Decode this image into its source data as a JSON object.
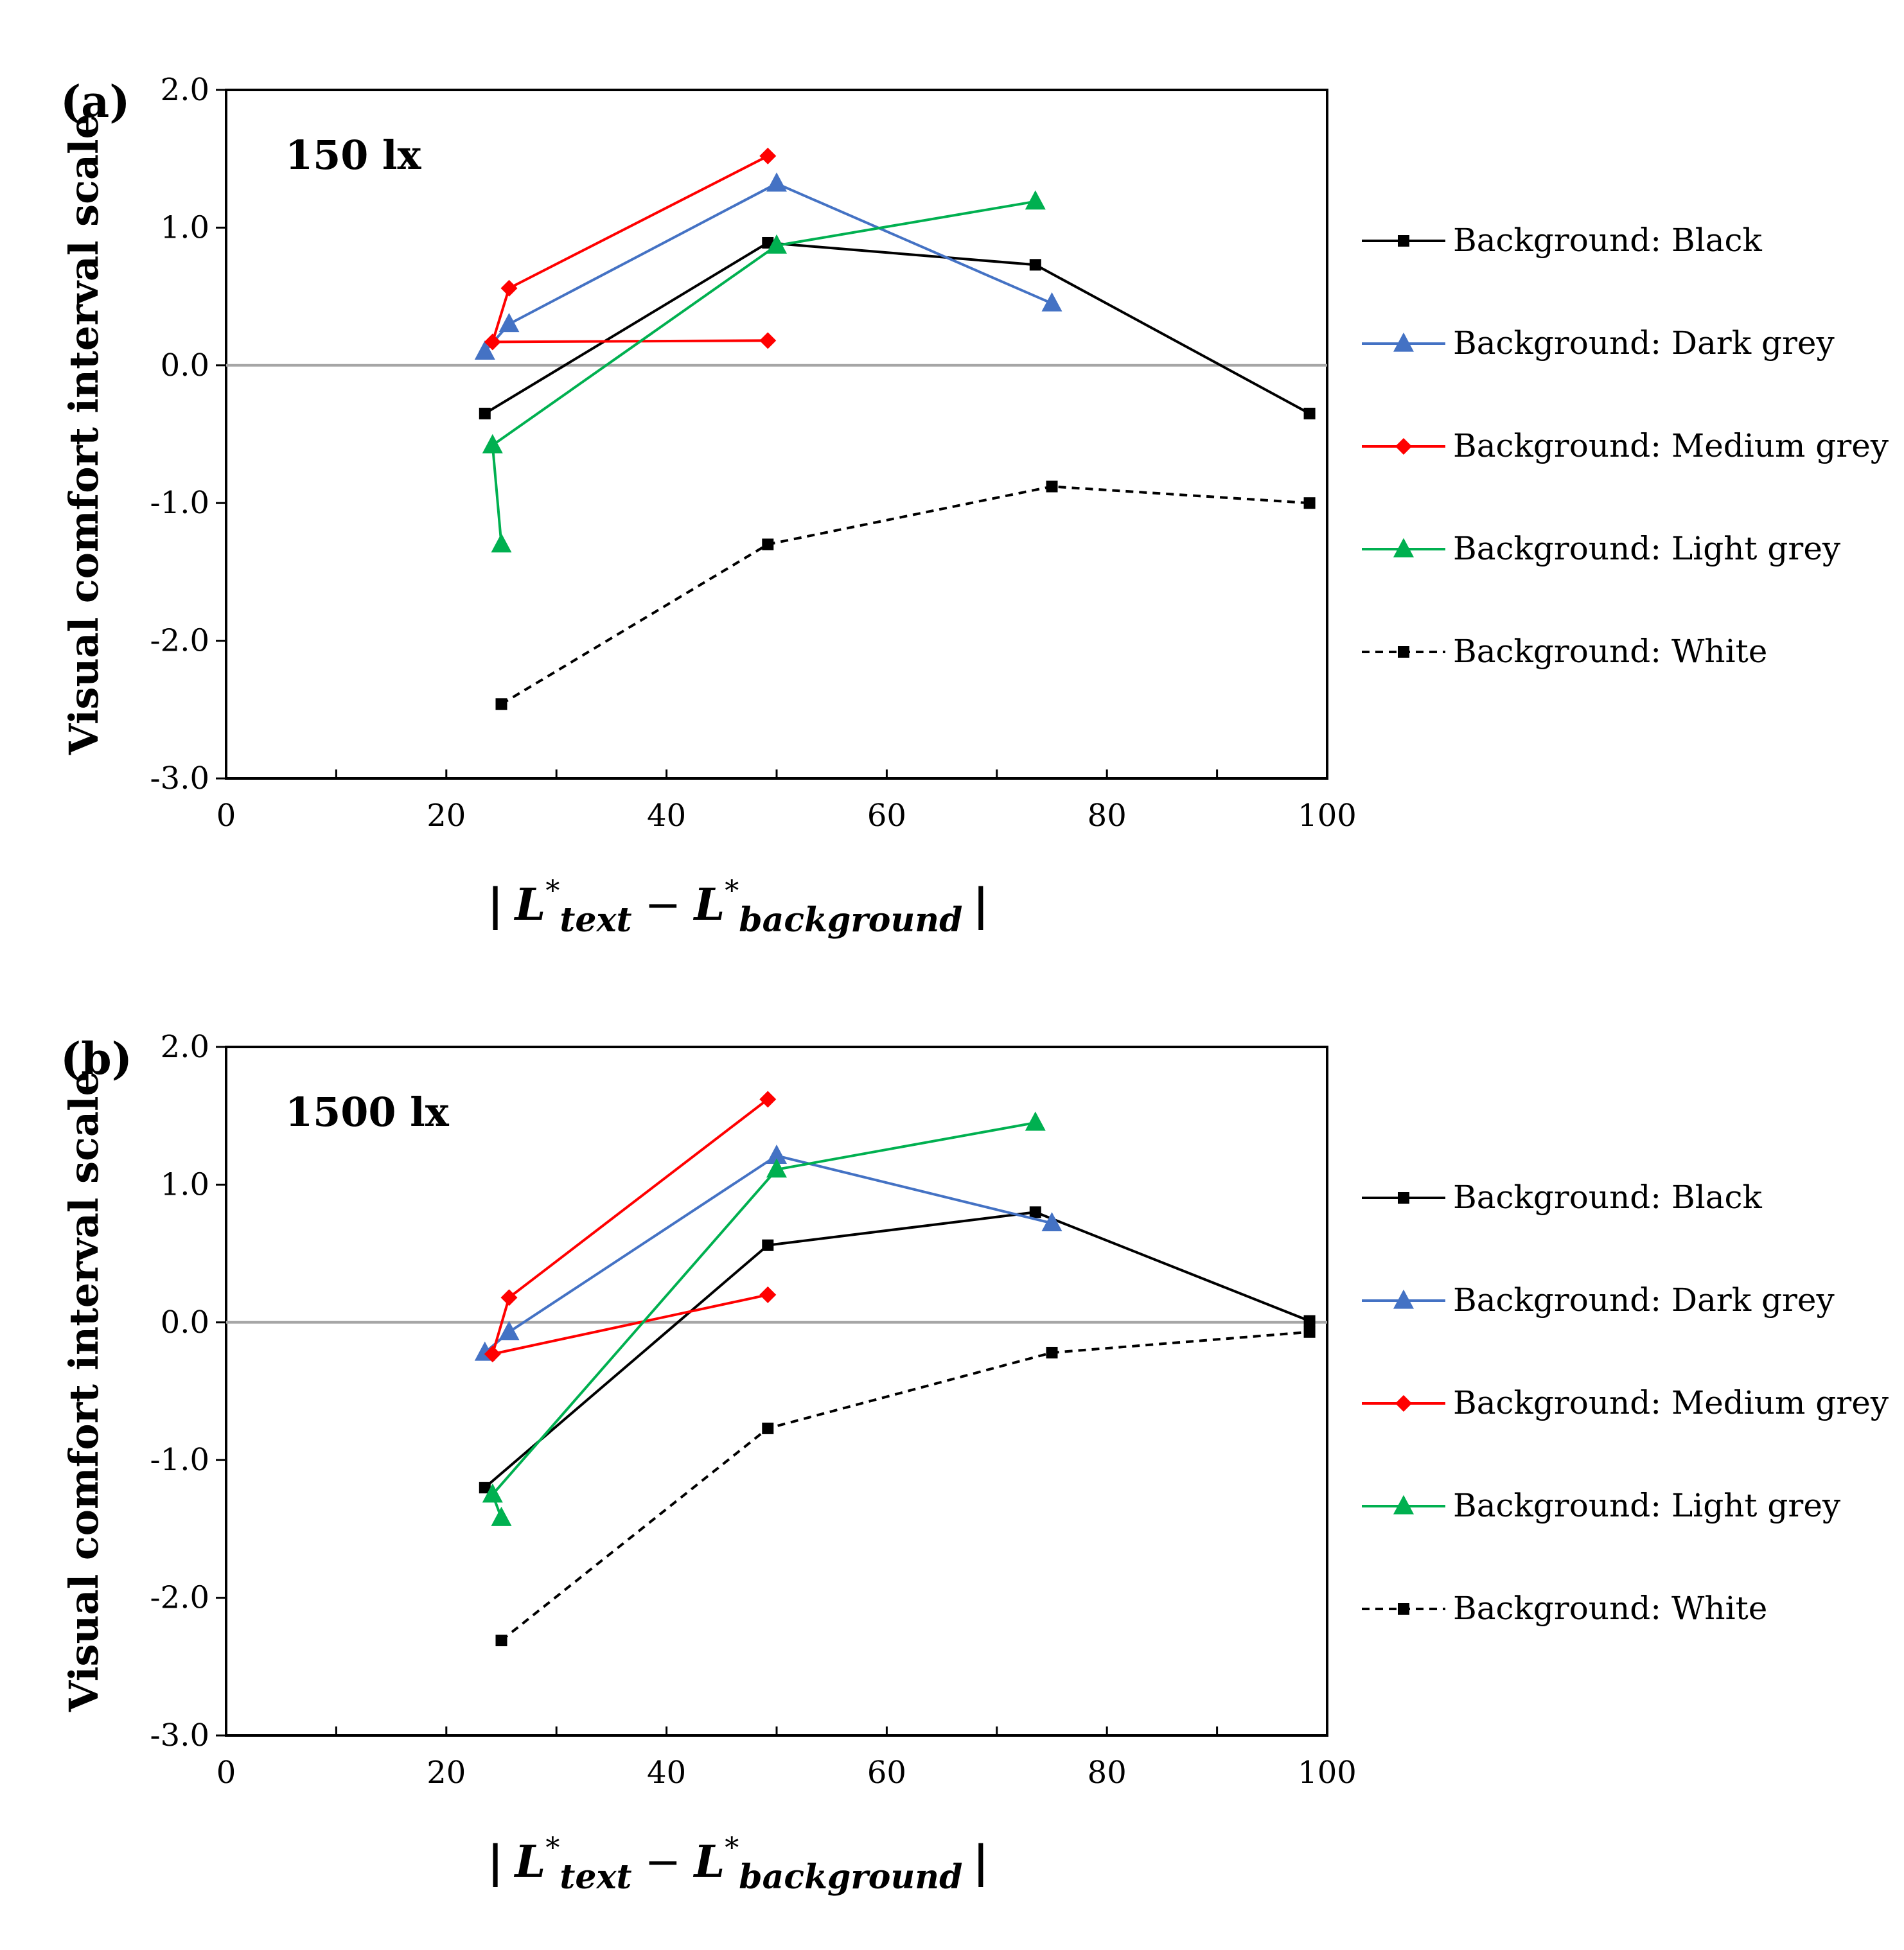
{
  "figure_panels": [
    {
      "letter": "(a)",
      "illuminance_label": "150 lx"
    },
    {
      "letter": "(b)",
      "illuminance_label": "1500 lx"
    }
  ],
  "axis_text": {
    "ylabel": "Visual comfort interval scale",
    "xlabel_bar": "|",
    "xlabel_L": "L",
    "xlabel_star": "*",
    "xlabel_text_sub": "text",
    "xlabel_minus": "−",
    "xlabel_background_sub": "background"
  },
  "chart_data": [
    {
      "type": "line",
      "title": "150 lx",
      "xlabel": "| L*text − L*background |",
      "ylabel": "Visual comfort interval scale",
      "xlim": [
        0,
        100
      ],
      "ylim": [
        -3.0,
        2.0
      ],
      "x_ticks": [
        0,
        20,
        40,
        60,
        80,
        100
      ],
      "x_tick_labels": [
        "0",
        "20",
        "40",
        "60",
        "80",
        "100"
      ],
      "y_ticks": [
        2.0,
        1.0,
        0.0,
        -1.0,
        -2.0,
        -3.0
      ],
      "y_tick_labels": [
        "2.0",
        "1.0",
        "0.0",
        "-1.0",
        "-2.0",
        "-3.0"
      ],
      "reference_line_y": 0.0,
      "legend_position": "right",
      "series": [
        {
          "name": "Background: Black",
          "color": "#000000",
          "marker": "square",
          "dashed": false,
          "points": [
            [
              23.5,
              -0.35
            ],
            [
              49.2,
              0.89
            ],
            [
              73.5,
              0.73
            ],
            [
              98.4,
              -0.35
            ]
          ]
        },
        {
          "name": "Background: Dark grey",
          "color": "#4472C4",
          "marker": "triangle",
          "dashed": false,
          "points": [
            [
              23.5,
              0.1
            ],
            [
              25.7,
              0.3
            ],
            [
              50.0,
              1.32
            ],
            [
              75.0,
              0.45
            ]
          ]
        },
        {
          "name": "Background: Medium grey",
          "color": "#FF0000",
          "marker": "diamond",
          "dashed": false,
          "points": [
            [
              49.2,
              0.18
            ],
            [
              24.2,
              0.17
            ],
            [
              25.7,
              0.56
            ],
            [
              49.2,
              1.52
            ]
          ]
        },
        {
          "name": "Background: Light grey",
          "color": "#00B050",
          "marker": "triangle",
          "dashed": false,
          "points": [
            [
              25.0,
              -1.3
            ],
            [
              24.2,
              -0.58
            ],
            [
              50.0,
              0.87
            ],
            [
              73.5,
              1.19
            ]
          ]
        },
        {
          "name": "Background: White",
          "color": "#000000",
          "marker": "square",
          "dashed": true,
          "points": [
            [
              25.0,
              -2.46
            ],
            [
              49.2,
              -1.3
            ],
            [
              75.0,
              -0.88
            ],
            [
              98.4,
              -1.0
            ]
          ]
        }
      ]
    },
    {
      "type": "line",
      "title": "1500 lx",
      "xlabel": "| L*text − L*background |",
      "ylabel": "Visual comfort interval scale",
      "xlim": [
        0,
        100
      ],
      "ylim": [
        -3.0,
        2.0
      ],
      "x_ticks": [
        0,
        20,
        40,
        60,
        80,
        100
      ],
      "x_tick_labels": [
        "0",
        "20",
        "40",
        "60",
        "80",
        "100"
      ],
      "y_ticks": [
        2.0,
        1.0,
        0.0,
        -1.0,
        -2.0,
        -3.0
      ],
      "y_tick_labels": [
        "2.0",
        "1.0",
        "0.0",
        "-1.0",
        "-2.0",
        "-3.0"
      ],
      "reference_line_y": 0.0,
      "legend_position": "right",
      "series": [
        {
          "name": "Background: Black",
          "color": "#000000",
          "marker": "square",
          "dashed": false,
          "points": [
            [
              23.5,
              -1.2
            ],
            [
              49.2,
              0.56
            ],
            [
              73.5,
              0.8
            ],
            [
              98.4,
              0.01
            ]
          ]
        },
        {
          "name": "Background: Dark grey",
          "color": "#4472C4",
          "marker": "triangle",
          "dashed": false,
          "points": [
            [
              23.5,
              -0.22
            ],
            [
              25.7,
              -0.07
            ],
            [
              50.0,
              1.21
            ],
            [
              75.0,
              0.72
            ]
          ]
        },
        {
          "name": "Background: Medium grey",
          "color": "#FF0000",
          "marker": "diamond",
          "dashed": false,
          "points": [
            [
              49.2,
              0.2
            ],
            [
              24.2,
              -0.23
            ],
            [
              25.7,
              0.18
            ],
            [
              49.2,
              1.62
            ]
          ]
        },
        {
          "name": "Background: Light grey",
          "color": "#00B050",
          "marker": "triangle",
          "dashed": false,
          "points": [
            [
              25.0,
              -1.42
            ],
            [
              24.2,
              -1.25
            ],
            [
              50.0,
              1.11
            ],
            [
              73.5,
              1.45
            ]
          ]
        },
        {
          "name": "Background: White",
          "color": "#000000",
          "marker": "square",
          "dashed": true,
          "points": [
            [
              25.0,
              -2.31
            ],
            [
              49.2,
              -0.77
            ],
            [
              75.0,
              -0.22
            ],
            [
              98.4,
              -0.07
            ]
          ]
        }
      ]
    }
  ]
}
